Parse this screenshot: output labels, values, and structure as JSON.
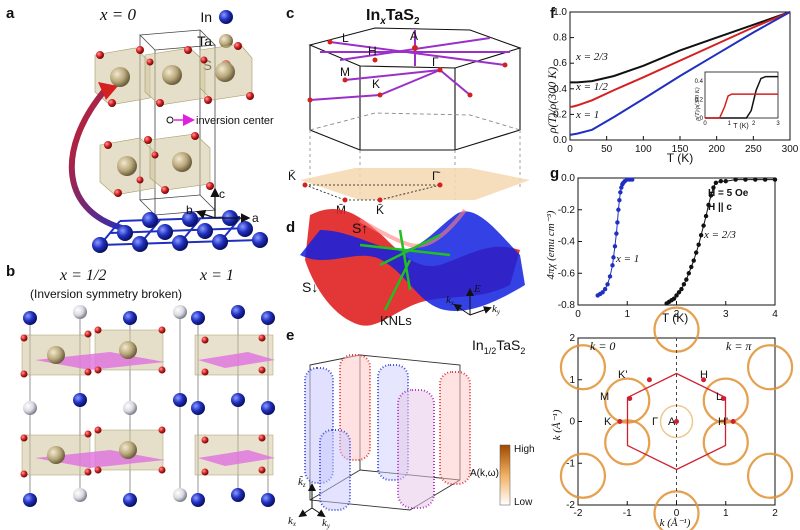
{
  "panels": {
    "a": {
      "label": "a",
      "title": "x = 0",
      "legend": [
        {
          "name": "In",
          "color": "#1f2fbf"
        },
        {
          "name": "Ta",
          "color": "#b8a77a"
        },
        {
          "name": "S",
          "color": "#d42020"
        }
      ],
      "inversion_label": "inversion center",
      "axis_a": "a",
      "axis_b": "b",
      "axis_c": "c"
    },
    "b": {
      "label": "b",
      "left_title": "x = 1/2",
      "right_title": "x = 1",
      "subtitle": "(Inversion symmetry broken)"
    },
    "c": {
      "label": "c",
      "title_main": "In",
      "title_sub": "x",
      "title_end": "TaS",
      "title_end_sub": "2",
      "points_3d": [
        "A",
        "L",
        "H",
        "M",
        "K",
        "Γ"
      ],
      "points_2d": [
        "K̄",
        "Γ̄",
        "M̄",
        "K̄"
      ]
    },
    "d": {
      "label": "d",
      "spin_up": "S↑",
      "spin_down": "S↓",
      "knl": "KNLs",
      "axes": [
        "E",
        "k",
        "k"
      ],
      "axes_sub": [
        "",
        "x",
        "y"
      ]
    },
    "e": {
      "label": "e",
      "formula_main": "In",
      "formula_sub": "1/2",
      "formula_end": "TaS",
      "formula_end_sub": "2",
      "axes": [
        "k̃",
        "k",
        "k"
      ],
      "axes_sub": [
        "z",
        "x",
        "y"
      ]
    },
    "f": {
      "label": "f",
      "ylabel": "ρ(T)/ρ(300 K)",
      "xlabel": "T (K)",
      "inset_ylabel": "ρ(T)/ρ(300 K)",
      "inset_xlabel": "T (K)"
    },
    "g": {
      "label": "g",
      "ylabel": "4πχ (emu cm⁻³)",
      "xlabel": "T (K)",
      "field_line1": "H = 5 Oe",
      "field_line2": "H || c"
    },
    "h": {
      "kz0": "k = 0",
      "kzpi": "k = π",
      "points": [
        "K'",
        "H",
        "M",
        "L",
        "K",
        "Γ",
        "A",
        "H'"
      ],
      "xlabel": "k (Å⁻¹)",
      "ylabel": "k (Å⁻¹)",
      "colorbar_high": "High",
      "colorbar_low": "Low",
      "colorbar_label": "A(k,ω)"
    }
  },
  "chart_data": [
    {
      "type": "line",
      "panel": "f",
      "xlabel": "T (K)",
      "ylabel": "ρ(T)/ρ(300 K)",
      "xlim": [
        0,
        300
      ],
      "ylim": [
        0,
        1.0
      ],
      "xticks": [
        0,
        50,
        100,
        150,
        200,
        250,
        300
      ],
      "yticks": [
        0,
        0.2,
        0.4,
        0.6,
        0.8,
        1.0
      ],
      "series": [
        {
          "name": "x = 2/3",
          "color": "#111111",
          "x": [
            0,
            3,
            10,
            30,
            60,
            100,
            150,
            200,
            250,
            300
          ],
          "y": [
            0.45,
            0.45,
            0.45,
            0.46,
            0.5,
            0.58,
            0.7,
            0.8,
            0.9,
            1.0
          ]
        },
        {
          "name": "x = 1/2",
          "color": "#d42020",
          "x": [
            0,
            3,
            10,
            30,
            60,
            100,
            150,
            200,
            250,
            300
          ],
          "y": [
            0.26,
            0.26,
            0.27,
            0.31,
            0.39,
            0.49,
            0.62,
            0.75,
            0.88,
            1.0
          ]
        },
        {
          "name": "x = 1",
          "color": "#1f2fbf",
          "x": [
            0,
            10,
            30,
            60,
            100,
            150,
            200,
            250,
            300
          ],
          "y": [
            0.04,
            0.05,
            0.08,
            0.18,
            0.32,
            0.5,
            0.67,
            0.84,
            1.0
          ]
        }
      ],
      "inset": {
        "xlim": [
          0,
          3
        ],
        "ylim": [
          0,
          0.5
        ],
        "xticks": [
          0,
          1,
          2,
          3
        ],
        "yticks": [
          0,
          0.2,
          0.4
        ],
        "series": [
          {
            "name": "x = 2/3",
            "color": "#111111",
            "x": [
              0,
              1.7,
              1.9,
              2.1,
              2.3,
              2.5,
              3.0
            ],
            "y": [
              0,
              0,
              0.08,
              0.3,
              0.43,
              0.45,
              0.45
            ]
          },
          {
            "name": "x = 1/2",
            "color": "#d42020",
            "x": [
              0,
              0.6,
              0.8,
              0.95,
              1.1,
              3.0
            ],
            "y": [
              0,
              0,
              0.12,
              0.24,
              0.26,
              0.26
            ]
          }
        ]
      }
    },
    {
      "type": "scatter",
      "panel": "g",
      "xlabel": "T (K)",
      "ylabel": "4πχ (emu cm⁻³)",
      "xlim": [
        0,
        4
      ],
      "ylim": [
        -0.8,
        0.0
      ],
      "xticks": [
        0,
        1,
        2,
        3,
        4
      ],
      "yticks": [
        -0.8,
        -0.6,
        -0.4,
        -0.2,
        0.0
      ],
      "series": [
        {
          "name": "x = 1",
          "color": "#1f2fbf",
          "x": [
            0.4,
            0.45,
            0.5,
            0.55,
            0.6,
            0.65,
            0.7,
            0.72,
            0.75,
            0.78,
            0.8,
            0.82,
            0.84,
            0.86,
            0.88,
            0.9,
            0.92,
            0.95,
            1.0,
            1.05,
            1.1
          ],
          "y": [
            -0.74,
            -0.73,
            -0.72,
            -0.7,
            -0.67,
            -0.62,
            -0.55,
            -0.5,
            -0.43,
            -0.35,
            -0.28,
            -0.2,
            -0.14,
            -0.09,
            -0.06,
            -0.04,
            -0.03,
            -0.02,
            -0.01,
            -0.01,
            -0.01
          ]
        },
        {
          "name": "x = 2/3",
          "color": "#111111",
          "x": [
            1.8,
            1.85,
            1.9,
            1.95,
            2.0,
            2.05,
            2.1,
            2.15,
            2.2,
            2.25,
            2.3,
            2.35,
            2.4,
            2.45,
            2.5,
            2.55,
            2.6,
            2.65,
            2.7,
            2.75,
            2.8,
            2.9,
            3.0,
            3.2,
            3.4,
            3.6,
            3.8,
            4.0
          ],
          "y": [
            -0.79,
            -0.78,
            -0.77,
            -0.76,
            -0.74,
            -0.72,
            -0.7,
            -0.67,
            -0.64,
            -0.6,
            -0.56,
            -0.52,
            -0.47,
            -0.42,
            -0.36,
            -0.3,
            -0.24,
            -0.17,
            -0.11,
            -0.06,
            -0.03,
            -0.02,
            -0.02,
            -0.01,
            -0.01,
            -0.01,
            -0.01,
            -0.01
          ]
        }
      ]
    },
    {
      "type": "heatmap",
      "panel": "h",
      "xlabel": "k (Å⁻¹)",
      "ylabel": "k (Å⁻¹)",
      "xlim": [
        -2,
        2
      ],
      "ylim": [
        -2,
        2
      ],
      "xticks": [
        -2,
        -1,
        0,
        1,
        2
      ],
      "yticks": [
        -2,
        -1,
        0,
        1,
        2
      ]
    }
  ]
}
